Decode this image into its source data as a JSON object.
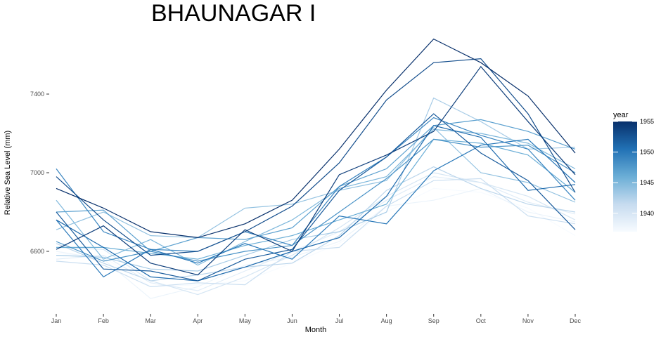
{
  "chart_data": {
    "type": "line",
    "title": "BHAUNAGAR I",
    "xlabel": "Month",
    "ylabel": "Relative Sea Level (mm)",
    "categories": [
      "Jan",
      "Feb",
      "Mar",
      "Apr",
      "May",
      "Jun",
      "Jul",
      "Aug",
      "Sep",
      "Oct",
      "Nov",
      "Dec"
    ],
    "ylim": [
      6260,
      7580
    ],
    "yticks": [
      6600,
      7000,
      7400
    ],
    "grid": false,
    "legend": {
      "title": "year",
      "position": "right",
      "range": [
        1937,
        1955
      ],
      "ticks": [
        1940,
        1945,
        1950,
        1955
      ],
      "color_low": "#f7fbff",
      "color_high": "#08306b"
    },
    "series": [
      {
        "name": "1937",
        "values": [
          6590,
          6570,
          6420,
          6430,
          6450,
          6540,
          6640,
          6800,
          6920,
          6900,
          6820,
          6680
        ]
      },
      {
        "name": "1938",
        "values": [
          6600,
          6560,
          6360,
          6420,
          6530,
          6570,
          6650,
          6830,
          6860,
          6920,
          6800,
          6750
        ]
      },
      {
        "name": "1939",
        "values": [
          6560,
          6580,
          6440,
          6400,
          6500,
          6600,
          6700,
          6860,
          6980,
          6950,
          6850,
          6790
        ]
      },
      {
        "name": "1940",
        "values": [
          6620,
          6610,
          6450,
          6380,
          6470,
          6580,
          6720,
          6880,
          7000,
          6950,
          6880,
          6760
        ]
      },
      {
        "name": "1941",
        "values": [
          6550,
          6530,
          6420,
          6440,
          6430,
          6600,
          6620,
          6830,
          6960,
          6970,
          6780,
          6740
        ]
      },
      {
        "name": "1942",
        "values": [
          6640,
          6540,
          6450,
          6480,
          6520,
          6540,
          6680,
          6910,
          7030,
          6920,
          6840,
          6800
        ]
      },
      {
        "name": "1943",
        "values": [
          6580,
          6570,
          6510,
          6500,
          6580,
          6660,
          6700,
          6800,
          7380,
          7260,
          7120,
          7130
        ]
      },
      {
        "name": "1944",
        "values": [
          6710,
          6800,
          6680,
          6670,
          6820,
          6840,
          6910,
          6960,
          7230,
          7000,
          6950,
          6850
        ]
      },
      {
        "name": "1945",
        "values": [
          6860,
          6560,
          6660,
          6530,
          6650,
          6760,
          6920,
          6980,
          7220,
          7200,
          7150,
          7020
        ]
      },
      {
        "name": "1946",
        "values": [
          6620,
          6620,
          6590,
          6560,
          6630,
          6680,
          6760,
          6840,
          7170,
          7150,
          7090,
          6900
        ]
      },
      {
        "name": "1947",
        "values": [
          6800,
          6810,
          6600,
          6670,
          6660,
          6720,
          6930,
          7020,
          7240,
          7270,
          7210,
          7120
        ]
      },
      {
        "name": "1948",
        "values": [
          6650,
          6550,
          6600,
          6550,
          6600,
          6630,
          6800,
          6970,
          7170,
          7130,
          7140,
          7000
        ]
      },
      {
        "name": "1949",
        "values": [
          7020,
          6700,
          6610,
          6600,
          6700,
          6630,
          6930,
          7080,
          7280,
          7190,
          7120,
          6860
        ]
      },
      {
        "name": "1950",
        "values": [
          6760,
          6470,
          6610,
          6540,
          6640,
          6560,
          6780,
          6740,
          7010,
          7140,
          7170,
          6950
        ]
      },
      {
        "name": "1951",
        "values": [
          6760,
          6620,
          6470,
          6450,
          6520,
          6600,
          6670,
          6880,
          7240,
          7180,
          6910,
          6940
        ]
      },
      {
        "name": "1952",
        "values": [
          6800,
          6510,
          6500,
          6450,
          6560,
          6610,
          6910,
          7080,
          7300,
          7100,
          6960,
          6710
        ]
      },
      {
        "name": "1953",
        "values": [
          6980,
          6760,
          6580,
          6600,
          6700,
          6830,
          7050,
          7370,
          7560,
          7580,
          7300,
          6900
        ]
      },
      {
        "name": "1954",
        "values": [
          6610,
          6730,
          6540,
          6480,
          6710,
          6600,
          6990,
          7090,
          7210,
          7540,
          7260,
          6990
        ]
      },
      {
        "name": "1955",
        "values": [
          6920,
          6820,
          6700,
          6670,
          6740,
          6860,
          7120,
          7420,
          7680,
          7560,
          7390,
          7100
        ]
      }
    ]
  }
}
